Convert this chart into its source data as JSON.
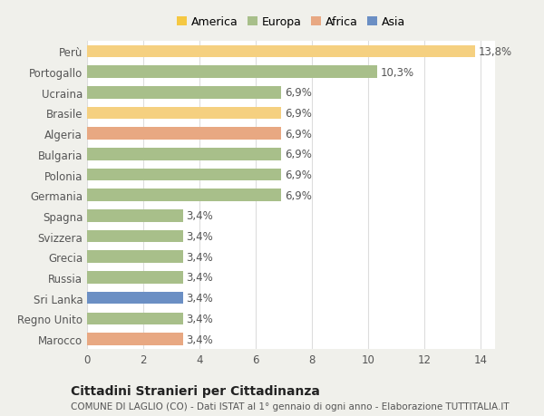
{
  "categories": [
    "Marocco",
    "Regno Unito",
    "Sri Lanka",
    "Russia",
    "Grecia",
    "Svizzera",
    "Spagna",
    "Germania",
    "Polonia",
    "Bulgaria",
    "Algeria",
    "Brasile",
    "Ucraina",
    "Portogallo",
    "Perù"
  ],
  "values": [
    3.4,
    3.4,
    3.4,
    3.4,
    3.4,
    3.4,
    3.4,
    6.9,
    6.9,
    6.9,
    6.9,
    6.9,
    6.9,
    10.3,
    13.8
  ],
  "colors": [
    "#e8a882",
    "#a8bf8a",
    "#6b8fc4",
    "#a8bf8a",
    "#a8bf8a",
    "#a8bf8a",
    "#a8bf8a",
    "#a8bf8a",
    "#a8bf8a",
    "#a8bf8a",
    "#e8a882",
    "#f5d080",
    "#a8bf8a",
    "#a8bf8a",
    "#f5d080"
  ],
  "labels": [
    "3,4%",
    "3,4%",
    "3,4%",
    "3,4%",
    "3,4%",
    "3,4%",
    "3,4%",
    "6,9%",
    "6,9%",
    "6,9%",
    "6,9%",
    "6,9%",
    "6,9%",
    "10,3%",
    "13,8%"
  ],
  "title": "Cittadini Stranieri per Cittadinanza",
  "subtitle": "COMUNE DI LAGLIO (CO) - Dati ISTAT al 1° gennaio di ogni anno - Elaborazione TUTTITALIA.IT",
  "xlim": [
    0,
    14.5
  ],
  "xticks": [
    0,
    2,
    4,
    6,
    8,
    10,
    12,
    14
  ],
  "legend_labels": [
    "America",
    "Europa",
    "Africa",
    "Asia"
  ],
  "legend_colors": [
    "#f5c842",
    "#a8bf8a",
    "#e8a882",
    "#6b8fc4"
  ],
  "figure_bg": "#f0f0eb",
  "axes_bg": "#ffffff",
  "grid_color": "#dddddd",
  "text_color": "#555555",
  "label_fontsize": 8.5,
  "tick_fontsize": 8.5,
  "title_fontsize": 10,
  "subtitle_fontsize": 7.5
}
